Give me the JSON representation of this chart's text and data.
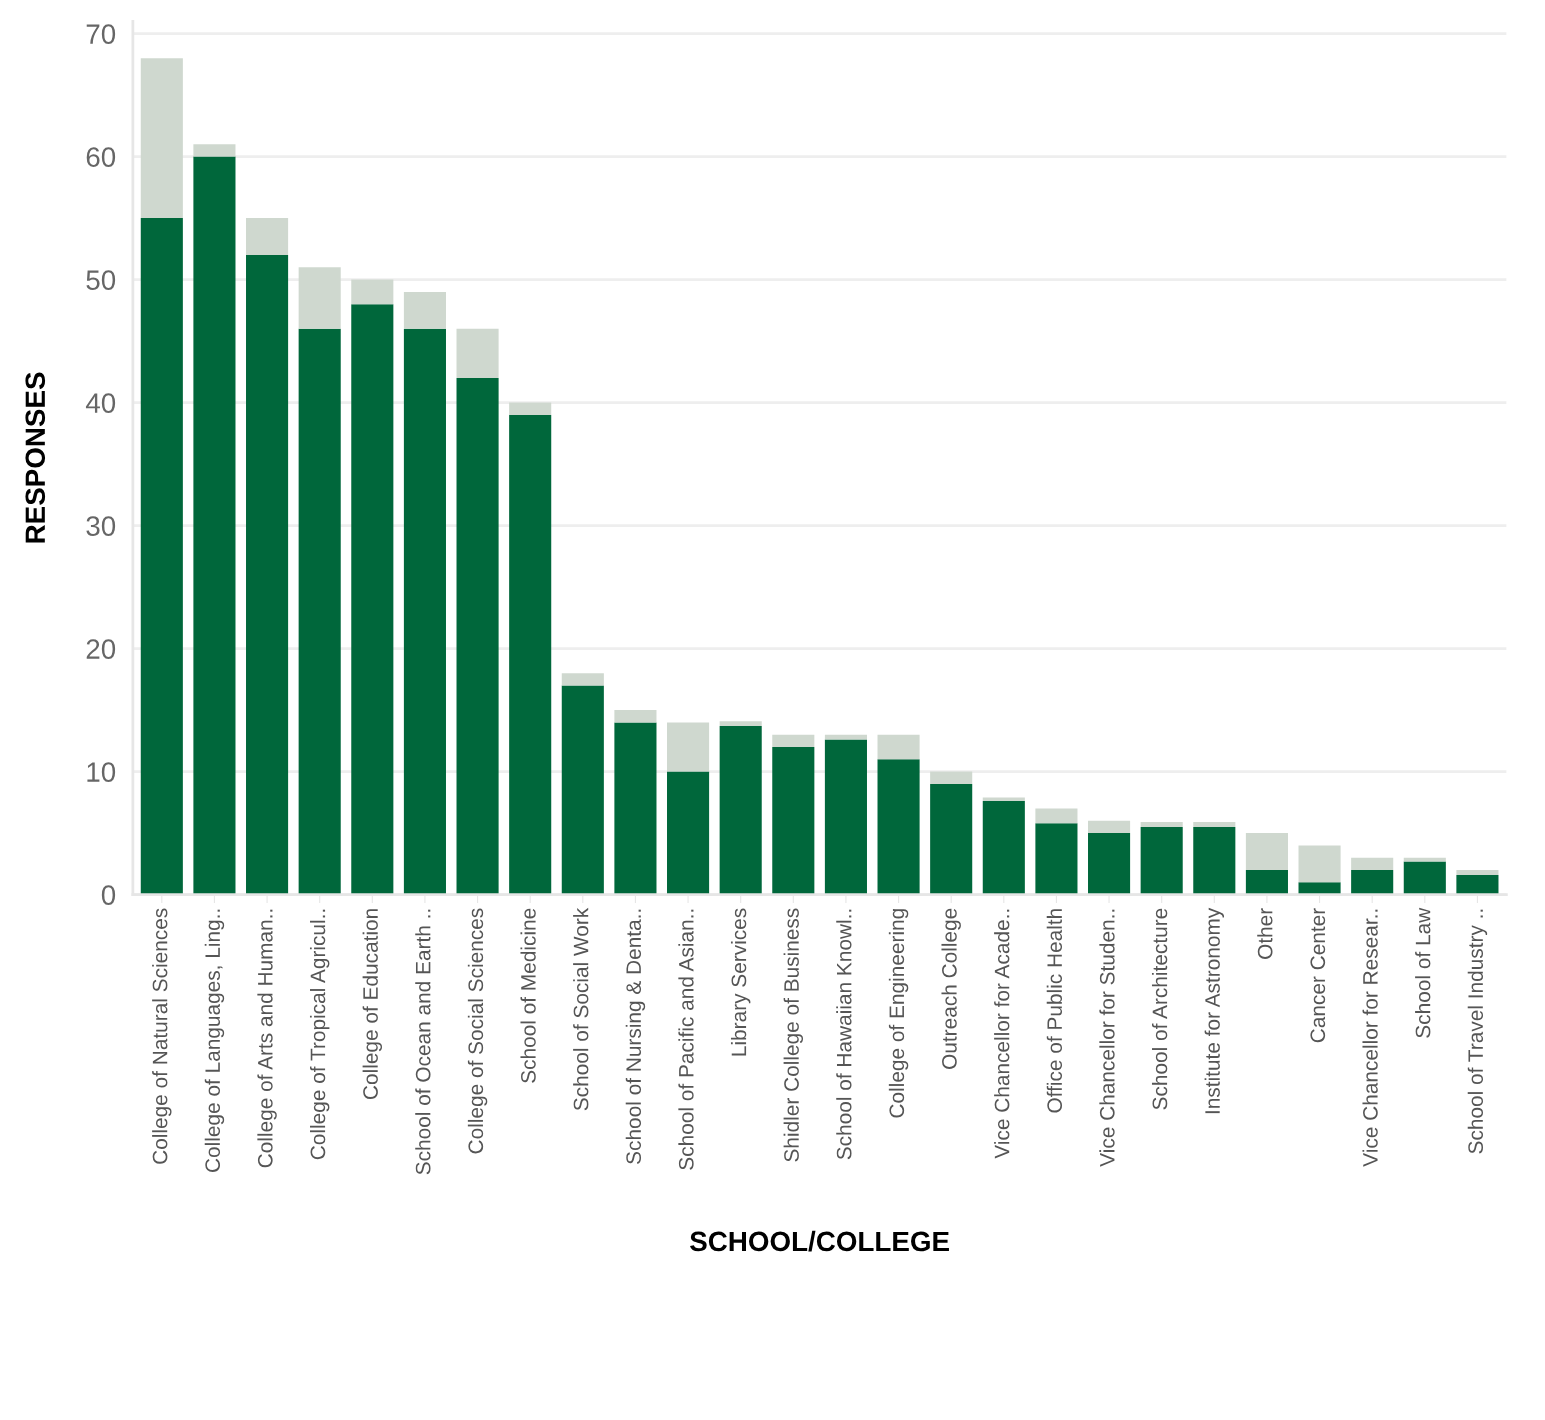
{
  "chart_data": {
    "type": "bar",
    "stacked": true,
    "xlabel": "SCHOOL/COLLEGE",
    "ylabel": "RESPONSES",
    "categories": [
      "College of Natural Sciences",
      "College of Languages, Ling..",
      "College of Arts and Human..",
      "College of Tropical Agricul..",
      "College of Education",
      "School of Ocean and Earth ..",
      "College of Social Sciences",
      "School of Medicine",
      "School of Social Work",
      "School of Nursing & Denta..",
      "School of Pacific and Asian..",
      "Library Services",
      "Shidler College of Business",
      "School of Hawaiian Knowl..",
      "College of Engineering",
      "Outreach College",
      "Vice Chancellor for Acade..",
      "Office of Public Health",
      "Vice Chancellor for Studen..",
      "School of Architecture",
      "Institute for Astronomy",
      "Other",
      "Cancer Center",
      "Vice Chancellor for Resear..",
      "School of Law",
      "School of Travel Industry .."
    ],
    "series": [
      {
        "color": "#00673b",
        "values": [
          55,
          60,
          52,
          46,
          48,
          46,
          42,
          39,
          17,
          14,
          10,
          13.7,
          12,
          12.6,
          11,
          9,
          7.6,
          5.8,
          5,
          5.5,
          5.5,
          2,
          1,
          2,
          2.7,
          1.6
        ]
      },
      {
        "color": "#cfd8cf",
        "values": [
          13,
          1,
          3,
          5,
          2,
          3,
          4,
          1,
          1,
          1,
          4,
          0.4,
          1,
          0.4,
          2,
          1,
          0.3,
          1.2,
          1,
          0.4,
          0.4,
          3,
          3,
          1,
          0.3,
          0.4
        ]
      }
    ],
    "ylim": [
      0,
      71
    ],
    "yticks": [
      0,
      10,
      20,
      30,
      40,
      50,
      60,
      70
    ],
    "grid": "y"
  }
}
